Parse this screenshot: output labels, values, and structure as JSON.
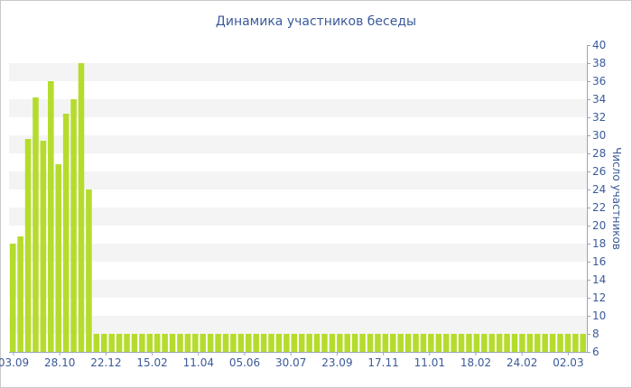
{
  "chart_data": {
    "type": "bar",
    "title": "Динамика участников беседы",
    "ylabel": "Число участников",
    "xlabel": "",
    "ylim": [
      6,
      40
    ],
    "yticks": [
      6,
      8,
      10,
      12,
      14,
      16,
      18,
      20,
      22,
      24,
      26,
      28,
      30,
      32,
      34,
      36,
      38,
      40
    ],
    "xtick_labels": [
      "03.09",
      "28.10",
      "22.12",
      "15.02",
      "11.04",
      "05.06",
      "30.07",
      "23.09",
      "17.11",
      "11.01",
      "18.02",
      "24.02",
      "02.03"
    ],
    "grid": "horizontal alternating bands",
    "y_axis_position": "right",
    "colors": {
      "bar": "#b5dc2d",
      "band": "#f4f4f4",
      "text": "#3b5a9a",
      "border": "#c9c9c9"
    },
    "values": [
      18,
      18.8,
      29.6,
      34.2,
      29.4,
      36,
      26.8,
      32.4,
      34,
      38,
      24,
      8,
      8,
      8,
      8,
      8,
      8,
      8,
      8,
      8,
      8,
      8,
      8,
      8,
      8,
      8,
      8,
      8,
      8,
      8,
      8,
      8,
      8,
      8,
      8,
      8,
      8,
      8,
      8,
      8,
      8,
      8,
      8,
      8,
      8,
      8,
      8,
      8,
      8,
      8,
      8,
      8,
      8,
      8,
      8,
      8,
      8,
      8,
      8,
      8,
      8,
      8,
      8,
      8,
      8,
      8,
      8,
      8,
      8,
      8,
      8,
      8,
      8,
      8,
      8,
      8
    ]
  }
}
